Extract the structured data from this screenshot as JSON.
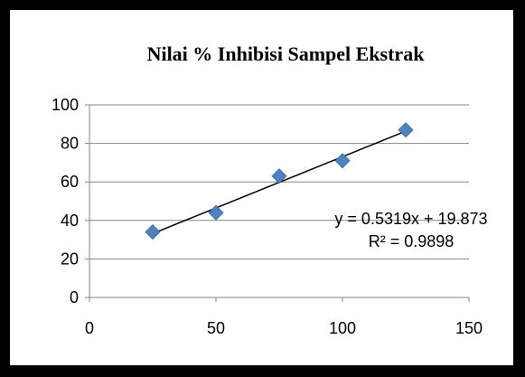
{
  "chart_data": {
    "type": "scatter",
    "title": "Nilai % Inhibisi Sampel Ekstrak",
    "xlabel": "",
    "ylabel": "",
    "xlim": [
      0,
      150
    ],
    "ylim": [
      0,
      100
    ],
    "x_ticks": [
      "0",
      "50",
      "100",
      "150"
    ],
    "y_ticks": [
      "0",
      "20",
      "40",
      "60",
      "80",
      "100"
    ],
    "grid": "horizontal",
    "legend": "none",
    "series": [
      {
        "x": [
          25,
          50,
          75,
          100,
          125
        ],
        "y": [
          34,
          44,
          63,
          71,
          87
        ],
        "marker_color": "#4f81bd"
      }
    ],
    "trendline": {
      "type": "linear",
      "slope": 0.5319,
      "intercept": 19.873,
      "equation": "y = 0.5319x + 19.873",
      "r_squared": "R² = 0.9898"
    }
  }
}
